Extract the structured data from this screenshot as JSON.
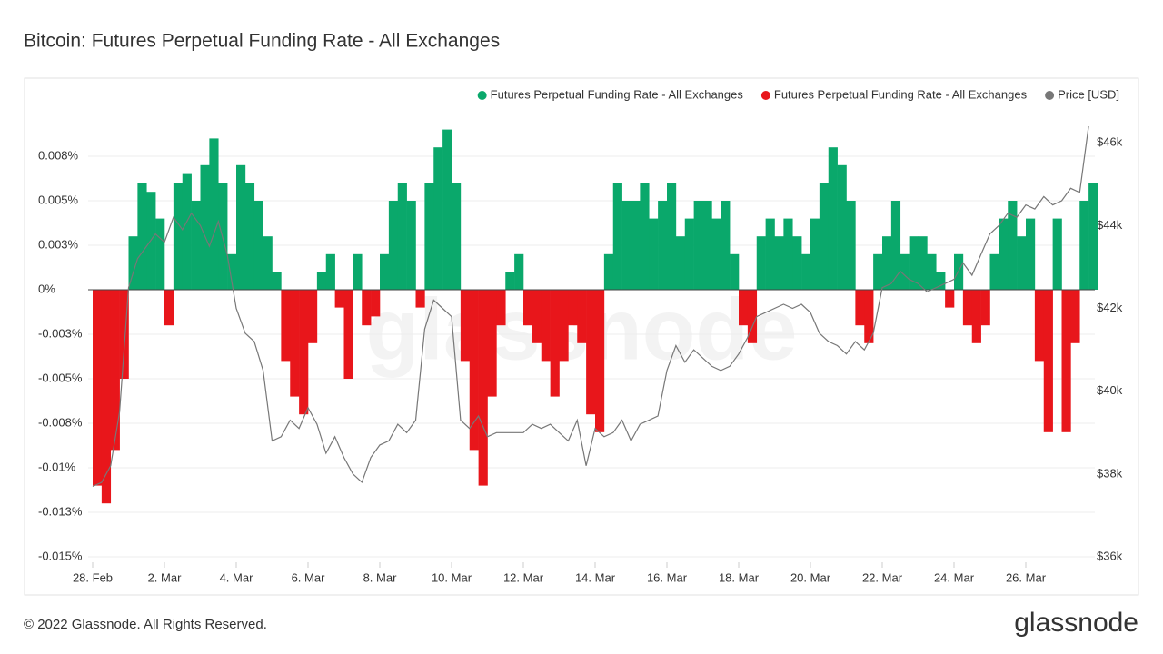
{
  "title": "Bitcoin: Futures Perpetual Funding Rate - All Exchanges",
  "footer": "© 2022 Glassnode. All Rights Reserved.",
  "brand": "glassnode",
  "chart_data": {
    "type": "bar",
    "watermark": "glassnode",
    "x": [
      0,
      0.25,
      0.5,
      0.75,
      1,
      1.25,
      1.5,
      1.75,
      2,
      2.25,
      2.5,
      2.75,
      3,
      3.25,
      3.5,
      3.75,
      4,
      4.25,
      4.5,
      4.75,
      5,
      5.25,
      5.5,
      5.75,
      6,
      6.25,
      6.5,
      6.75,
      7,
      7.25,
      7.5,
      7.75,
      8,
      8.25,
      8.5,
      8.75,
      9,
      9.25,
      9.5,
      9.75,
      10,
      10.25,
      10.5,
      10.75,
      11,
      11.25,
      11.5,
      11.75,
      12,
      12.25,
      12.5,
      12.75,
      13,
      13.25,
      13.5,
      13.75,
      14,
      14.25,
      14.5,
      14.75,
      15,
      15.25,
      15.5,
      15.75,
      16,
      16.25,
      16.5,
      16.75,
      17,
      17.25,
      17.5,
      17.75,
      18,
      18.25,
      18.5,
      18.75,
      19,
      19.25,
      19.5,
      19.75,
      20,
      20.25,
      20.5,
      20.75,
      21,
      21.25,
      21.5,
      21.75,
      22,
      22.25,
      22.5,
      22.75,
      23,
      23.25,
      23.5,
      23.75,
      24,
      24.25,
      24.5,
      24.75,
      25,
      25.25,
      25.5,
      25.75,
      26,
      26.25,
      26.5,
      26.75,
      27,
      27.25,
      27.5,
      27.75
    ],
    "xlim": [
      0,
      28
    ],
    "xticks": [
      {
        "value": 0,
        "label": "28. Feb"
      },
      {
        "value": 2,
        "label": "2. Mar"
      },
      {
        "value": 4,
        "label": "4. Mar"
      },
      {
        "value": 6,
        "label": "6. Mar"
      },
      {
        "value": 8,
        "label": "8. Mar"
      },
      {
        "value": 10,
        "label": "10. Mar"
      },
      {
        "value": 12,
        "label": "12. Mar"
      },
      {
        "value": 14,
        "label": "14. Mar"
      },
      {
        "value": 16,
        "label": "16. Mar"
      },
      {
        "value": 18,
        "label": "18. Mar"
      },
      {
        "value": 20,
        "label": "20. Mar"
      },
      {
        "value": 22,
        "label": "22. Mar"
      },
      {
        "value": 24,
        "label": "24. Mar"
      },
      {
        "value": 26,
        "label": "26. Mar"
      }
    ],
    "ylim": [
      -0.015,
      0.01
    ],
    "yticks": [
      {
        "value": 0.0075,
        "label": "0.008%"
      },
      {
        "value": 0.005,
        "label": "0.005%"
      },
      {
        "value": 0.0025,
        "label": "0.003%"
      },
      {
        "value": 0,
        "label": "0%"
      },
      {
        "value": -0.0025,
        "label": "-0.003%"
      },
      {
        "value": -0.005,
        "label": "-0.005%"
      },
      {
        "value": -0.0075,
        "label": "-0.008%"
      },
      {
        "value": -0.01,
        "label": "-0.01%"
      },
      {
        "value": -0.0125,
        "label": "-0.013%"
      },
      {
        "value": -0.015,
        "label": "-0.015%"
      }
    ],
    "y2lim": [
      36000,
      46750
    ],
    "y2ticks": [
      {
        "value": 46000,
        "label": "$46k"
      },
      {
        "value": 44000,
        "label": "$44k"
      },
      {
        "value": 42000,
        "label": "$42k"
      },
      {
        "value": 40000,
        "label": "$40k"
      },
      {
        "value": 38000,
        "label": "$38k"
      },
      {
        "value": 36000,
        "label": "$36k"
      }
    ],
    "grid": true,
    "legend": "top-right",
    "series": [
      {
        "name": "Futures Perpetual Funding Rate - All Exchanges",
        "color": "#0aa86b",
        "values": [
          null,
          null,
          null,
          null,
          0.003,
          0.006,
          0.0055,
          0.004,
          null,
          0.006,
          0.0065,
          0.005,
          0.007,
          0.0085,
          0.006,
          0.002,
          0.007,
          0.006,
          0.005,
          0.003,
          0.001,
          null,
          null,
          null,
          null,
          0.001,
          0.002,
          null,
          null,
          0.002,
          null,
          null,
          0.002,
          0.005,
          0.006,
          0.005,
          null,
          0.006,
          0.008,
          0.009,
          0.006,
          null,
          null,
          null,
          null,
          null,
          0.001,
          0.002,
          null,
          null,
          null,
          null,
          null,
          null,
          null,
          null,
          null,
          0.002,
          0.006,
          0.005,
          0.005,
          0.006,
          0.004,
          0.005,
          0.006,
          0.003,
          0.004,
          0.005,
          0.005,
          0.004,
          0.005,
          0.002,
          null,
          null,
          0.003,
          0.004,
          0.003,
          0.004,
          0.003,
          0.002,
          0.004,
          0.006,
          0.008,
          0.007,
          0.005,
          null,
          null,
          0.002,
          0.003,
          0.005,
          0.002,
          0.003,
          0.003,
          0.002,
          0.001,
          null,
          0.002,
          null,
          null,
          null,
          0.002,
          0.004,
          0.005,
          0.003,
          0.004,
          null,
          null,
          0.004,
          null,
          null,
          0.005,
          0.006
        ]
      },
      {
        "name": "Futures Perpetual Funding Rate - All Exchanges",
        "color": "#e8161b",
        "values": [
          -0.011,
          -0.012,
          -0.009,
          -0.005,
          null,
          null,
          null,
          null,
          -0.002,
          null,
          null,
          null,
          null,
          null,
          null,
          null,
          null,
          null,
          null,
          null,
          null,
          -0.004,
          -0.006,
          -0.007,
          -0.003,
          null,
          null,
          -0.001,
          -0.005,
          null,
          -0.002,
          -0.0015,
          null,
          null,
          null,
          null,
          -0.001,
          null,
          null,
          null,
          null,
          -0.004,
          -0.009,
          -0.011,
          -0.006,
          -0.002,
          null,
          null,
          -0.002,
          -0.003,
          -0.004,
          -0.006,
          -0.004,
          -0.002,
          -0.003,
          -0.007,
          -0.008,
          null,
          null,
          null,
          null,
          null,
          null,
          null,
          null,
          null,
          null,
          null,
          null,
          null,
          null,
          null,
          -0.002,
          -0.003,
          null,
          null,
          null,
          null,
          null,
          null,
          null,
          null,
          null,
          null,
          null,
          -0.002,
          -0.003,
          null,
          null,
          null,
          null,
          null,
          null,
          null,
          null,
          -0.001,
          null,
          -0.002,
          -0.003,
          -0.002,
          null,
          null,
          null,
          null,
          null,
          -0.004,
          -0.008,
          null,
          -0.008,
          -0.003,
          null,
          null
        ]
      },
      {
        "name": "Price [USD]",
        "color": "#777777",
        "axis": "y2",
        "values": [
          37700,
          37800,
          38200,
          39500,
          42500,
          43200,
          43500,
          43800,
          43600,
          44200,
          43900,
          44300,
          44000,
          43500,
          44100,
          43300,
          42000,
          41400,
          41200,
          40500,
          38800,
          38900,
          39300,
          39100,
          39600,
          39200,
          38500,
          38900,
          38400,
          38000,
          37800,
          38400,
          38700,
          38800,
          39200,
          39000,
          39300,
          41500,
          42200,
          42000,
          41800,
          39300,
          39100,
          39400,
          38900,
          39000,
          39000,
          39000,
          39000,
          39200,
          39100,
          39200,
          39000,
          38800,
          39300,
          38200,
          39100,
          38900,
          39000,
          39300,
          38800,
          39200,
          39300,
          39400,
          40500,
          41100,
          40700,
          41000,
          40800,
          40600,
          40500,
          40600,
          40900,
          41300,
          41800,
          41900,
          42000,
          42100,
          42000,
          42100,
          41900,
          41400,
          41200,
          41100,
          40900,
          41200,
          41000,
          41400,
          42500,
          42600,
          42900,
          42700,
          42600,
          42400,
          42500,
          42600,
          42700,
          43100,
          42800,
          43300,
          43800,
          44000,
          44300,
          44200,
          44500,
          44400,
          44700,
          44500,
          44600,
          44900,
          44800,
          46400
        ]
      }
    ]
  }
}
